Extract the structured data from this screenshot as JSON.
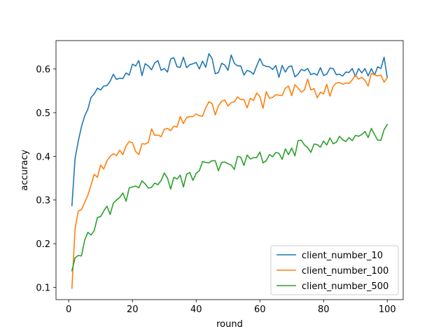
{
  "chart_data": {
    "type": "line",
    "title": "",
    "xlabel": "round",
    "ylabel": "accuracy",
    "xlim": [
      -4,
      105
    ],
    "ylim": [
      0.072,
      0.665
    ],
    "xticks": [
      0,
      20,
      40,
      60,
      80,
      100
    ],
    "yticks": [
      0.1,
      0.2,
      0.3,
      0.4,
      0.5,
      0.6
    ],
    "ytick_labels": [
      "0.1",
      "0.2",
      "0.3",
      "0.4",
      "0.5",
      "0.6"
    ],
    "grid": false,
    "legend_position": "lower-right",
    "series": [
      {
        "name": "client_number_10",
        "color": "#1f77b4",
        "x": [
          1,
          2,
          3,
          4,
          5,
          6,
          7,
          8,
          9,
          10,
          11,
          12,
          13,
          14,
          15,
          16,
          17,
          18,
          19,
          20,
          21,
          22,
          23,
          24,
          25,
          26,
          27,
          28,
          29,
          30,
          31,
          32,
          33,
          34,
          35,
          36,
          37,
          38,
          39,
          40,
          41,
          42,
          43,
          44,
          45,
          46,
          47,
          48,
          49,
          50,
          51,
          52,
          53,
          54,
          55,
          56,
          57,
          58,
          59,
          60,
          61,
          62,
          63,
          64,
          65,
          66,
          67,
          68,
          69,
          70,
          71,
          72,
          73,
          74,
          75,
          76,
          77,
          78,
          79,
          80,
          81,
          82,
          83,
          84,
          85,
          86,
          87,
          88,
          89,
          90,
          91,
          92,
          93,
          94,
          95,
          96,
          97,
          98,
          99,
          100
        ],
        "y": [
          0.287,
          0.396,
          0.435,
          0.468,
          0.492,
          0.508,
          0.535,
          0.543,
          0.556,
          0.552,
          0.561,
          0.562,
          0.572,
          0.588,
          0.576,
          0.579,
          0.578,
          0.591,
          0.586,
          0.611,
          0.607,
          0.619,
          0.585,
          0.612,
          0.607,
          0.598,
          0.614,
          0.619,
          0.597,
          0.601,
          0.593,
          0.623,
          0.626,
          0.605,
          0.604,
          0.627,
          0.603,
          0.61,
          0.612,
          0.615,
          0.6,
          0.618,
          0.604,
          0.635,
          0.624,
          0.589,
          0.592,
          0.613,
          0.609,
          0.597,
          0.632,
          0.613,
          0.607,
          0.607,
          0.586,
          0.597,
          0.594,
          0.588,
          0.607,
          0.624,
          0.609,
          0.606,
          0.605,
          0.599,
          0.608,
          0.581,
          0.608,
          0.593,
          0.605,
          0.607,
          0.582,
          0.588,
          0.599,
          0.596,
          0.601,
          0.587,
          0.59,
          0.586,
          0.603,
          0.585,
          0.588,
          0.602,
          0.601,
          0.587,
          0.588,
          0.584,
          0.593,
          0.592,
          0.601,
          0.583,
          0.601,
          0.591,
          0.601,
          0.584,
          0.601,
          0.586,
          0.605,
          0.601,
          0.627,
          0.58
        ]
      },
      {
        "name": "client_number_100",
        "color": "#ff7f0e",
        "x": [
          1,
          2,
          3,
          4,
          5,
          6,
          7,
          8,
          9,
          10,
          11,
          12,
          13,
          14,
          15,
          16,
          17,
          18,
          19,
          20,
          21,
          22,
          23,
          24,
          25,
          26,
          27,
          28,
          29,
          30,
          31,
          32,
          33,
          34,
          35,
          36,
          37,
          38,
          39,
          40,
          41,
          42,
          43,
          44,
          45,
          46,
          47,
          48,
          49,
          50,
          51,
          52,
          53,
          54,
          55,
          56,
          57,
          58,
          59,
          60,
          61,
          62,
          63,
          64,
          65,
          66,
          67,
          68,
          69,
          70,
          71,
          72,
          73,
          74,
          75,
          76,
          77,
          78,
          79,
          80,
          81,
          82,
          83,
          84,
          85,
          86,
          87,
          88,
          89,
          90,
          91,
          92,
          93,
          94,
          95,
          96,
          97,
          98,
          99,
          100
        ],
        "y": [
          0.098,
          0.235,
          0.275,
          0.278,
          0.294,
          0.311,
          0.334,
          0.359,
          0.352,
          0.38,
          0.371,
          0.39,
          0.4,
          0.406,
          0.402,
          0.414,
          0.404,
          0.424,
          0.434,
          0.431,
          0.411,
          0.404,
          0.429,
          0.428,
          0.432,
          0.463,
          0.448,
          0.449,
          0.445,
          0.462,
          0.464,
          0.459,
          0.469,
          0.467,
          0.491,
          0.475,
          0.489,
          0.491,
          0.491,
          0.497,
          0.493,
          0.492,
          0.511,
          0.525,
          0.521,
          0.495,
          0.516,
          0.526,
          0.529,
          0.515,
          0.523,
          0.525,
          0.536,
          0.53,
          0.53,
          0.511,
          0.533,
          0.528,
          0.545,
          0.537,
          0.51,
          0.548,
          0.533,
          0.535,
          0.541,
          0.54,
          0.539,
          0.556,
          0.561,
          0.539,
          0.564,
          0.556,
          0.547,
          0.552,
          0.577,
          0.552,
          0.555,
          0.534,
          0.547,
          0.543,
          0.565,
          0.538,
          0.56,
          0.568,
          0.569,
          0.565,
          0.568,
          0.567,
          0.575,
          0.586,
          0.577,
          0.581,
          0.574,
          0.561,
          0.59,
          0.587,
          0.584,
          0.586,
          0.57,
          0.58
        ]
      },
      {
        "name": "client_number_500",
        "color": "#2ca02c",
        "x": [
          1,
          2,
          3,
          4,
          5,
          6,
          7,
          8,
          9,
          10,
          11,
          12,
          13,
          14,
          15,
          16,
          17,
          18,
          19,
          20,
          21,
          22,
          23,
          24,
          25,
          26,
          27,
          28,
          29,
          30,
          31,
          32,
          33,
          34,
          35,
          36,
          37,
          38,
          39,
          40,
          41,
          42,
          43,
          44,
          45,
          46,
          47,
          48,
          49,
          50,
          51,
          52,
          53,
          54,
          55,
          56,
          57,
          58,
          59,
          60,
          61,
          62,
          63,
          64,
          65,
          66,
          67,
          68,
          69,
          70,
          71,
          72,
          73,
          74,
          75,
          76,
          77,
          78,
          79,
          80,
          81,
          82,
          83,
          84,
          85,
          86,
          87,
          88,
          89,
          90,
          91,
          92,
          93,
          94,
          95,
          96,
          97,
          98,
          99,
          100
        ],
        "y": [
          0.138,
          0.168,
          0.173,
          0.172,
          0.208,
          0.226,
          0.22,
          0.23,
          0.26,
          0.262,
          0.275,
          0.286,
          0.267,
          0.293,
          0.3,
          0.306,
          0.316,
          0.297,
          0.328,
          0.33,
          0.332,
          0.328,
          0.344,
          0.337,
          0.327,
          0.329,
          0.339,
          0.335,
          0.345,
          0.362,
          0.35,
          0.325,
          0.352,
          0.348,
          0.357,
          0.33,
          0.359,
          0.363,
          0.345,
          0.361,
          0.367,
          0.388,
          0.386,
          0.385,
          0.39,
          0.39,
          0.367,
          0.386,
          0.387,
          0.383,
          0.38,
          0.37,
          0.4,
          0.398,
          0.379,
          0.403,
          0.394,
          0.397,
          0.397,
          0.41,
          0.385,
          0.39,
          0.404,
          0.399,
          0.409,
          0.407,
          0.393,
          0.417,
          0.404,
          0.419,
          0.401,
          0.436,
          0.437,
          0.426,
          0.42,
          0.409,
          0.428,
          0.427,
          0.421,
          0.435,
          0.426,
          0.442,
          0.429,
          0.432,
          0.446,
          0.438,
          0.434,
          0.443,
          0.436,
          0.448,
          0.446,
          0.45,
          0.457,
          0.443,
          0.464,
          0.45,
          0.437,
          0.437,
          0.461,
          0.473
        ]
      }
    ]
  }
}
